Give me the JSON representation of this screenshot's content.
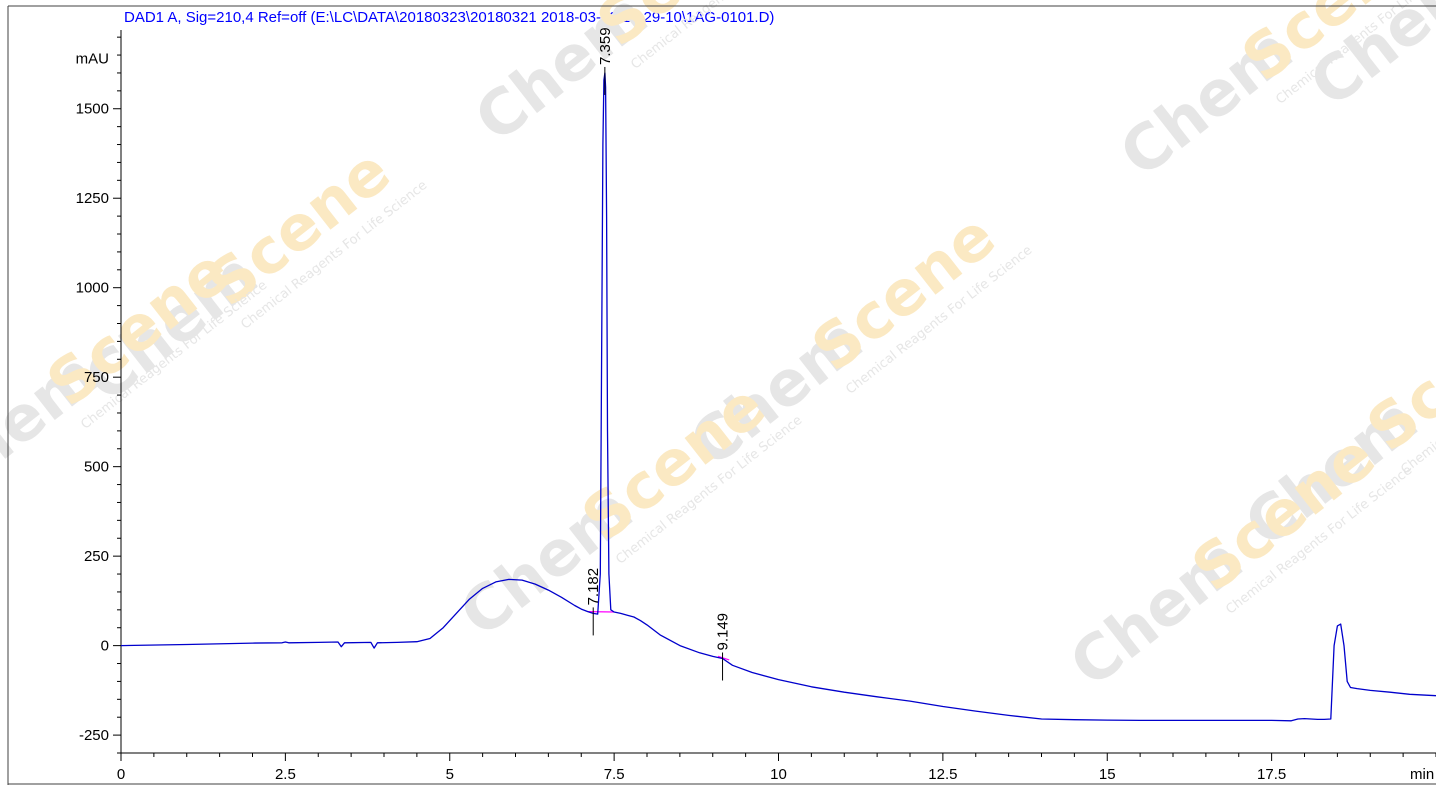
{
  "chart_data": {
    "type": "line",
    "title": "DAD1 A, Sig=210,4 Ref=off (E:\\LC\\DATA\\20180323\\20180321 2018-03-23 14-29-10\\1AG-0101.D)",
    "ylabel": "mAU",
    "xlabel": "min",
    "xlim": [
      0,
      20
    ],
    "ylim": [
      -300,
      1720
    ],
    "x_ticks": [
      {
        "value": 0,
        "label": "0"
      },
      {
        "value": 2.5,
        "label": "2.5"
      },
      {
        "value": 5,
        "label": "5"
      },
      {
        "value": 7.5,
        "label": "7.5"
      },
      {
        "value": 10,
        "label": "10"
      },
      {
        "value": 12.5,
        "label": "12.5"
      },
      {
        "value": 15,
        "label": "15"
      },
      {
        "value": 17.5,
        "label": "17.5"
      }
    ],
    "y_ticks": [
      {
        "value": -250,
        "label": "-250"
      },
      {
        "value": 0,
        "label": "0"
      },
      {
        "value": 250,
        "label": "250"
      },
      {
        "value": 500,
        "label": "500"
      },
      {
        "value": 750,
        "label": "750"
      },
      {
        "value": 1000,
        "label": "1000"
      },
      {
        "value": 1250,
        "label": "1250"
      },
      {
        "value": 1500,
        "label": "1500"
      }
    ],
    "grid": false,
    "legend": "none",
    "series": [
      {
        "color": "#0000cc",
        "x": [
          0,
          1,
          2,
          2.45,
          2.5,
          2.55,
          3,
          3.3,
          3.35,
          3.4,
          3.8,
          3.85,
          3.9,
          4.2,
          4.5,
          4.7,
          4.9,
          5.1,
          5.3,
          5.5,
          5.7,
          5.9,
          6.1,
          6.3,
          6.5,
          6.7,
          6.9,
          7.0,
          7.1,
          7.182,
          7.25,
          7.29,
          7.31,
          7.33,
          7.345,
          7.359,
          7.37,
          7.385,
          7.4,
          7.42,
          7.45,
          7.5,
          7.6,
          7.7,
          7.8,
          7.9,
          8.0,
          8.2,
          8.5,
          8.8,
          9.0,
          9.149,
          9.3,
          9.6,
          10,
          10.5,
          11,
          11.5,
          12,
          12.5,
          13,
          13.5,
          14,
          14.5,
          15,
          15.5,
          16,
          16.5,
          17,
          17.5,
          17.8,
          17.9,
          18.0,
          18.2,
          18.3,
          18.4,
          18.45,
          18.5,
          18.55,
          18.6,
          18.65,
          18.7,
          18.8,
          19,
          19.3,
          19.6,
          20
        ],
        "y": [
          0,
          3,
          7,
          8,
          10,
          8,
          9,
          10,
          -3,
          8,
          9,
          -7,
          8,
          9,
          11,
          20,
          50,
          90,
          130,
          160,
          178,
          185,
          183,
          172,
          155,
          135,
          112,
          102,
          95,
          90,
          88,
          200,
          800,
          1400,
          1580,
          1600,
          1560,
          1200,
          600,
          200,
          100,
          94,
          90,
          85,
          80,
          70,
          58,
          30,
          0,
          -20,
          -30,
          -36,
          -55,
          -75,
          -95,
          -115,
          -130,
          -143,
          -155,
          -170,
          -183,
          -195,
          -205,
          -207,
          -208,
          -209,
          -209,
          -209,
          -209,
          -209,
          -210,
          -205,
          -204,
          -206,
          -206,
          -205,
          0,
          55,
          60,
          0,
          -100,
          -117,
          -120,
          -125,
          -130,
          -136,
          -140
        ]
      }
    ],
    "peak_labels": [
      {
        "x": 7.182,
        "y": 90,
        "label": "7.182"
      },
      {
        "x": 7.359,
        "y": 1600,
        "label": "7.359"
      },
      {
        "x": 9.149,
        "y": -36,
        "label": "9.149"
      }
    ]
  },
  "watermark": {
    "brand_chem": "Chem",
    "brand_scene": "Scene",
    "tagline": "Chemical Reagents For Life Science",
    "colors": {
      "gray": "#e6e6e6",
      "gold": "#fbe9c3"
    }
  },
  "colors": {
    "title": "#0000ff",
    "trace": "#0000cc",
    "baseline": "#ff00ff",
    "axis": "#000000"
  }
}
